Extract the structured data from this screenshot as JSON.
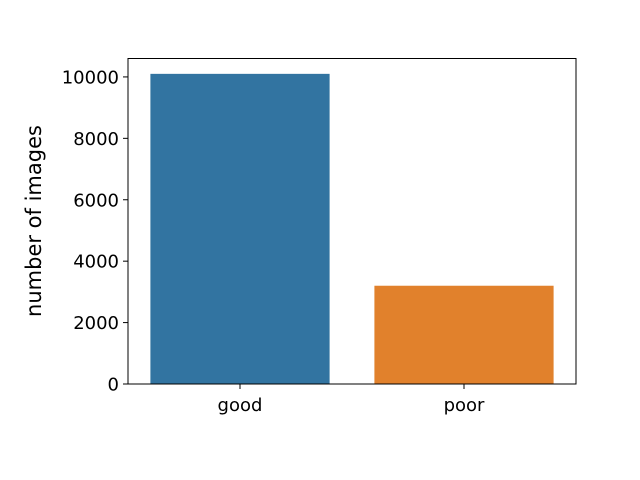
{
  "chart_data": {
    "type": "bar",
    "title": "",
    "xlabel": "",
    "ylabel": "number of images",
    "categories": [
      "good",
      "poor"
    ],
    "values": [
      10100,
      3200
    ],
    "colors": [
      "#3274a1",
      "#e1812c"
    ],
    "ylim": [
      0,
      10600
    ],
    "yticks": [
      0,
      2000,
      4000,
      6000,
      8000,
      10000
    ],
    "grid": false,
    "legend": "none"
  }
}
